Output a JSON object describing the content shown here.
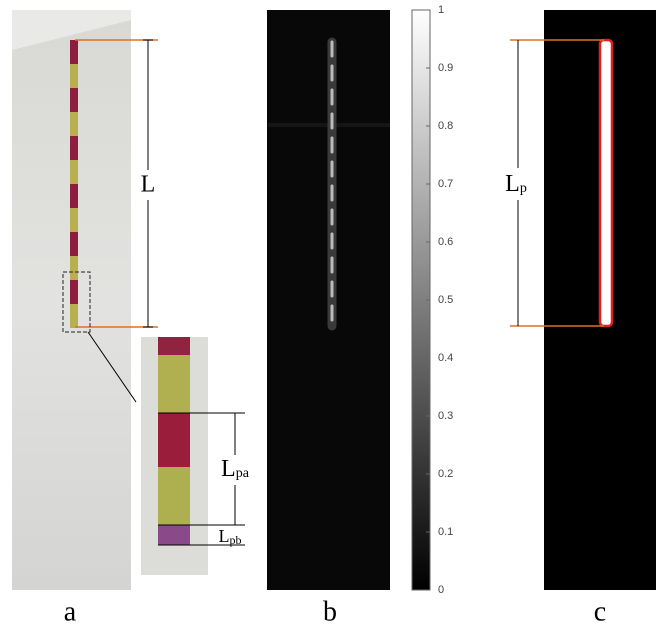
{
  "panels": {
    "a": {
      "label": "a",
      "length_label": "L",
      "segment_label": {
        "main": "L",
        "sub": "pa"
      },
      "gap_label": {
        "main": "L",
        "sub": "pb"
      }
    },
    "b": {
      "label": "b",
      "colorbar": {
        "range": [
          0,
          1
        ],
        "ticks": [
          0,
          0.1,
          0.2,
          0.3,
          0.4,
          0.5,
          0.6,
          0.7,
          0.8,
          0.9,
          1
        ]
      }
    },
    "c": {
      "label": "c",
      "length_label": {
        "main": "L",
        "sub": "p"
      }
    }
  }
}
